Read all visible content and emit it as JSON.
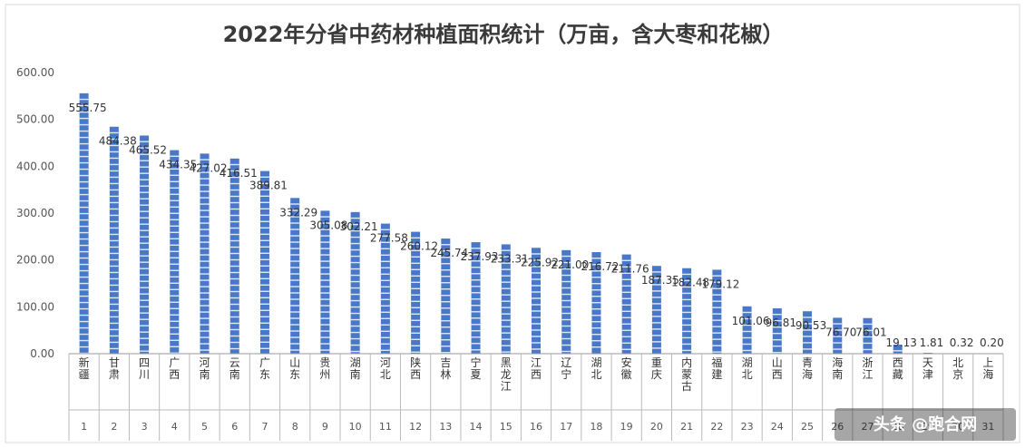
{
  "chart_data": {
    "type": "bar",
    "title": "2022年分省中药材种植面积统计（万亩，含大枣和花椒）",
    "xlabel": "",
    "ylabel": "",
    "ylim": [
      0,
      600
    ],
    "yticks": [
      "0.00",
      "100.00",
      "200.00",
      "300.00",
      "400.00",
      "500.00",
      "600.00"
    ],
    "grid": false,
    "bar_color": "#4a78c8",
    "categories": [
      "新疆",
      "甘肃",
      "四川",
      "广西",
      "河南",
      "云南",
      "广东",
      "山东",
      "贵州",
      "湖南",
      "河北",
      "陕西",
      "吉林",
      "宁夏",
      "黑龙江",
      "江西",
      "辽宁",
      "湖北",
      "安徽",
      "重庆",
      "内蒙古",
      "福建",
      "湖北",
      "山西",
      "青海",
      "海南",
      "浙江",
      "西藏",
      "天津",
      "北京",
      "上海"
    ],
    "ranks": [
      "1",
      "2",
      "3",
      "4",
      "5",
      "6",
      "7",
      "8",
      "9",
      "10",
      "11",
      "12",
      "13",
      "14",
      "15",
      "16",
      "17",
      "18",
      "19",
      "20",
      "21",
      "22",
      "23",
      "24",
      "25",
      "26",
      "27",
      "28",
      "29",
      "30",
      "31"
    ],
    "values": [
      555.75,
      484.38,
      465.52,
      434.35,
      427.02,
      416.51,
      389.81,
      332.29,
      305.08,
      302.21,
      277.58,
      260.12,
      245.74,
      237.93,
      233.31,
      225.92,
      221.0,
      216.72,
      211.76,
      187.35,
      182.48,
      179.12,
      101.06,
      96.81,
      90.53,
      76.7,
      76.01,
      19.13,
      1.81,
      0.32,
      0.2
    ],
    "labels": [
      "555.75",
      "484.38",
      "465.52",
      "434.35",
      "427.02",
      "416.51",
      "389.81",
      "332.29",
      "305.08",
      "302.21",
      "277.58",
      "260.12",
      "245.74",
      "237.93",
      "233.31",
      "225.92",
      "221.00",
      "216.72",
      "211.76",
      "187.35",
      "182.48",
      "179.12",
      "101.06",
      "96.81",
      "90.53",
      "76.70",
      "76.01",
      "19.13",
      "1.81",
      "0.32",
      "0.20"
    ]
  },
  "watermark": "头条 @跑合网"
}
